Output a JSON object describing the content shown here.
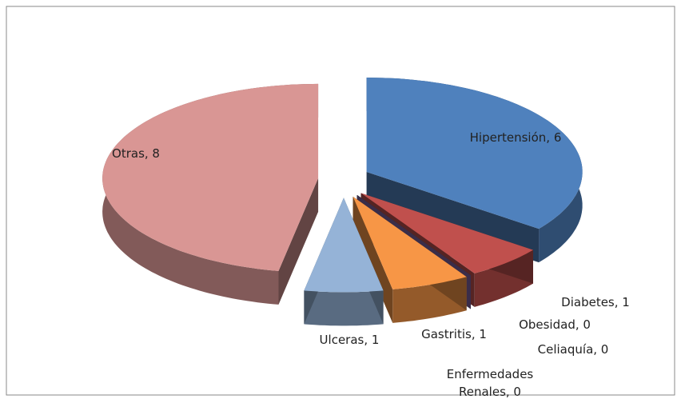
{
  "chart_data": {
    "type": "pie",
    "categories": [
      "Hipertensión",
      "Diabetes",
      "Obesidad",
      "Celiaquía",
      "Enfermedades Renales",
      "Gastritis",
      "Ulceras",
      "Otras"
    ],
    "values": [
      6,
      1,
      0,
      0,
      0,
      1,
      1,
      8
    ],
    "value_labels": [
      ", 6",
      ", 1",
      ", 0",
      ", 0",
      ", 0",
      ", 1",
      ", 1",
      ", 8"
    ],
    "colors": [
      "#4f81bd",
      "#c0504d",
      "#9bbb59",
      "#23606e",
      "#8064a2",
      "#f79646",
      "#95b3d7",
      "#d99694"
    ]
  }
}
